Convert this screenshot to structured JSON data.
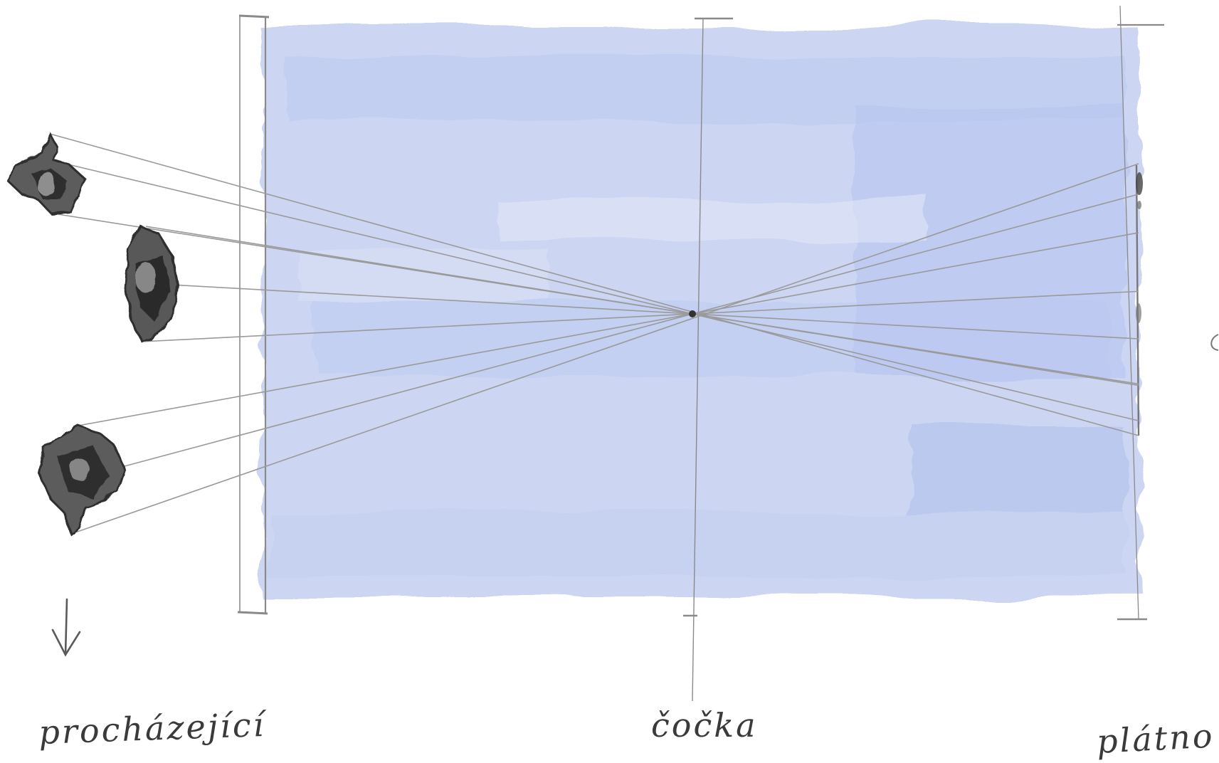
{
  "labels": {
    "left": "procházející",
    "center": "čočka",
    "right": "plátno"
  },
  "colors": {
    "wash": "#c3cff0",
    "wash_dark": "#b3c1ec",
    "pencil": "#8a8a8a",
    "figure": "#3c3c3c"
  },
  "icons": {
    "figures": [
      "walker-figure-top",
      "walker-figure-middle",
      "walker-figure-bottom"
    ],
    "arrow": "down-arrow-icon"
  }
}
